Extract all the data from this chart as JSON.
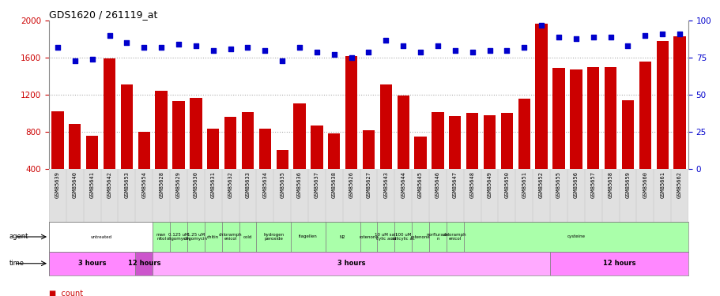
{
  "title": "GDS1620 / 261119_at",
  "samples": [
    "GSM85639",
    "GSM85640",
    "GSM85641",
    "GSM85642",
    "GSM85653",
    "GSM85654",
    "GSM85628",
    "GSM85629",
    "GSM85630",
    "GSM85631",
    "GSM85632",
    "GSM85633",
    "GSM85634",
    "GSM85635",
    "GSM85636",
    "GSM85637",
    "GSM85638",
    "GSM85626",
    "GSM85627",
    "GSM85643",
    "GSM85644",
    "GSM85645",
    "GSM85646",
    "GSM85647",
    "GSM85648",
    "GSM85649",
    "GSM85650",
    "GSM85651",
    "GSM85652",
    "GSM85655",
    "GSM85656",
    "GSM85657",
    "GSM85658",
    "GSM85659",
    "GSM85660",
    "GSM85661",
    "GSM85662"
  ],
  "counts": [
    1020,
    880,
    760,
    1590,
    1310,
    800,
    1240,
    1130,
    1170,
    835,
    960,
    1010,
    830,
    600,
    1110,
    870,
    780,
    1620,
    820,
    1310,
    1190,
    750,
    1010,
    970,
    1000,
    980,
    1000,
    1160,
    1970,
    1490,
    1470,
    1500,
    1500,
    1140,
    1560,
    1780,
    1830
  ],
  "percentiles": [
    82,
    73,
    74,
    90,
    85,
    82,
    82,
    84,
    83,
    80,
    81,
    82,
    80,
    73,
    82,
    79,
    77,
    75,
    79,
    87,
    83,
    79,
    83,
    80,
    79,
    80,
    80,
    82,
    97,
    89,
    88,
    89,
    89,
    83,
    90,
    91,
    91
  ],
  "ylim_left": [
    400,
    2000
  ],
  "ylim_right": [
    0,
    100
  ],
  "yticks_left": [
    400,
    800,
    1200,
    1600,
    2000
  ],
  "yticks_right": [
    0,
    25,
    50,
    75,
    100
  ],
  "agent_groups": [
    {
      "label": "untreated",
      "start": 0,
      "end": 5,
      "color": "#ffffff"
    },
    {
      "label": "man\nnitol",
      "start": 6,
      "end": 6,
      "color": "#aaffaa"
    },
    {
      "label": "0.125 uM\noligomycin",
      "start": 7,
      "end": 7,
      "color": "#aaffaa"
    },
    {
      "label": "1.25 uM\noligomycin",
      "start": 8,
      "end": 8,
      "color": "#aaffaa"
    },
    {
      "label": "chitin",
      "start": 9,
      "end": 9,
      "color": "#aaffaa"
    },
    {
      "label": "chloramph\nenicol",
      "start": 10,
      "end": 10,
      "color": "#aaffaa"
    },
    {
      "label": "cold",
      "start": 11,
      "end": 11,
      "color": "#aaffaa"
    },
    {
      "label": "hydrogen\nperoxide",
      "start": 12,
      "end": 13,
      "color": "#aaffaa"
    },
    {
      "label": "flagellen",
      "start": 14,
      "end": 15,
      "color": "#aaffaa"
    },
    {
      "label": "N2",
      "start": 16,
      "end": 17,
      "color": "#aaffaa"
    },
    {
      "label": "rotenone",
      "start": 18,
      "end": 18,
      "color": "#aaffaa"
    },
    {
      "label": "10 uM sali\ncylic acid",
      "start": 19,
      "end": 19,
      "color": "#aaffaa"
    },
    {
      "label": "100 uM\nsalicylic ac",
      "start": 20,
      "end": 20,
      "color": "#aaffaa"
    },
    {
      "label": "rotenone",
      "start": 21,
      "end": 21,
      "color": "#aaffaa"
    },
    {
      "label": "norflurazo\nn",
      "start": 22,
      "end": 22,
      "color": "#aaffaa"
    },
    {
      "label": "chloramph\nenicol",
      "start": 23,
      "end": 23,
      "color": "#aaffaa"
    },
    {
      "label": "cysteine",
      "start": 24,
      "end": 36,
      "color": "#aaffaa"
    }
  ],
  "time_groups": [
    {
      "label": "3 hours",
      "start": 0,
      "end": 4,
      "color": "#ff88ff"
    },
    {
      "label": "12 hours",
      "start": 5,
      "end": 5,
      "color": "#cc55cc"
    },
    {
      "label": "3 hours",
      "start": 6,
      "end": 28,
      "color": "#ffaaff"
    },
    {
      "label": "12 hours",
      "start": 29,
      "end": 36,
      "color": "#ff88ff"
    }
  ],
  "bar_color": "#cc0000",
  "dot_color": "#0000cc",
  "grid_color": "#aaaaaa",
  "bg_color": "#ffffff",
  "tick_color_left": "#cc0000",
  "tick_color_right": "#0000cc"
}
